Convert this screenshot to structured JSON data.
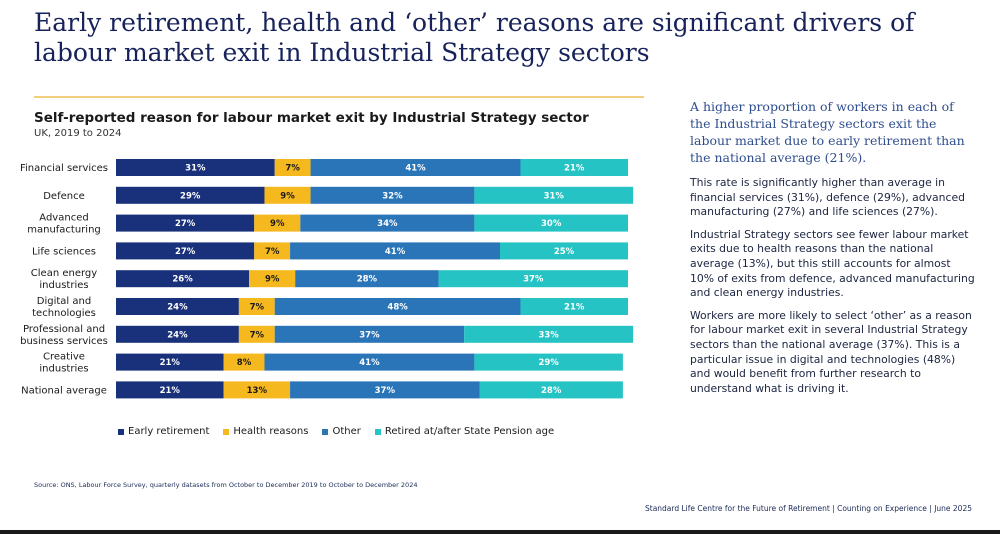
{
  "slide": {
    "title": "Early retirement, health and ‘other’ reasons are significant drivers of labour market exit in Industrial Strategy sectors"
  },
  "chart_data": {
    "type": "bar",
    "orientation": "horizontal",
    "stacked": true,
    "title": "Self-reported reason for labour market exit by Industrial Strategy sector",
    "subtitle": "UK, 2019 to 2024",
    "categories": [
      [
        "Financial services"
      ],
      [
        "Defence"
      ],
      [
        "Advanced",
        "manufacturing"
      ],
      [
        "Life sciences"
      ],
      [
        "Clean energy",
        "industries"
      ],
      [
        "Digital and",
        "technologies"
      ],
      [
        "Professional and",
        "business services"
      ],
      [
        "Creative",
        "industries"
      ],
      [
        "National average"
      ]
    ],
    "series": [
      {
        "name": "Early retirement",
        "color": "#19317a",
        "label_color": "#ffffff",
        "values": [
          31,
          29,
          27,
          27,
          26,
          24,
          24,
          21,
          21
        ]
      },
      {
        "name": "Health reasons",
        "color": "#f5b81e",
        "label_color": "#1a1a1a",
        "values": [
          7,
          9,
          9,
          7,
          9,
          7,
          7,
          8,
          13
        ]
      },
      {
        "name": "Other",
        "color": "#2a74b8",
        "label_color": "#ffffff",
        "values": [
          41,
          32,
          34,
          41,
          28,
          48,
          37,
          41,
          37
        ]
      },
      {
        "name": "Retired at/after State Pension age",
        "color": "#25c3c3",
        "label_color": "#ffffff",
        "values": [
          21,
          31,
          30,
          25,
          37,
          21,
          33,
          29,
          28
        ]
      }
    ],
    "value_suffix": "%",
    "xlim": [
      0,
      100
    ],
    "grid": false,
    "legend_position": "bottom"
  },
  "side_panel": {
    "lead": "A higher proportion of workers in each of the Industrial Strategy sectors exit the labour market due to early retirement than the national average (21%).",
    "paragraphs": [
      "This rate is significantly higher than average in financial services (31%), defence (29%), advanced manufacturing (27%) and life sciences (27%).",
      "Industrial Strategy sectors see fewer labour market exits due to health reasons than the national average (13%), but this still accounts for almost 10% of exits from defence, advanced manufacturing and clean energy industries.",
      "Workers are more likely to select ‘other’ as a reason for labour market exit in several Industrial Strategy sectors than the national average (37%). This is a particular issue in digital and technologies (48%) and would benefit from further research to understand what is driving it."
    ]
  },
  "source": "Source: ONS, Labour Force Survey, quarterly datasets from October to December 2019 to October to December 2024",
  "footer": "Standard Life Centre for the Future of Retirement  |  Counting on Experience  |  June 2025"
}
